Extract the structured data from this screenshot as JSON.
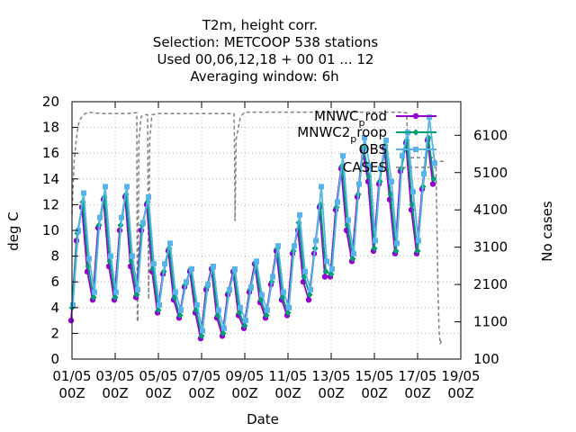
{
  "chart_data": {
    "type": "line",
    "title_lines": [
      "T2m, height corr.",
      "Selection: METCOOP    538 stations",
      "Used  00,06,12,18 + 00 01 ... 12",
      "Averaging window:  6h"
    ],
    "xlabel": "Date",
    "ylabel": "deg C",
    "y2label": "No cases",
    "x_tick_top": [
      "01/05",
      "03/05",
      "05/05",
      "07/05",
      "09/05",
      "11/05",
      "13/05",
      "15/05",
      "17/05",
      "19/05"
    ],
    "x_tick_bottom": [
      "00Z",
      "00Z",
      "00Z",
      "00Z",
      "00Z",
      "00Z",
      "00Z",
      "00Z",
      "00Z",
      "00Z"
    ],
    "xlim_days": [
      0,
      18
    ],
    "ylim": [
      0,
      20
    ],
    "yticks": [
      "0",
      "2",
      "4",
      "6",
      "8",
      "10",
      "12",
      "14",
      "16",
      "18",
      "20"
    ],
    "y2lim": [
      100,
      7000
    ],
    "y2ticks": [
      "100",
      "1100",
      "2100",
      "3100",
      "4100",
      "5100",
      "6100"
    ],
    "grid": true,
    "legend_position": "top-right",
    "legend": [
      {
        "main": "MNWC",
        "sub": "p",
        "tail": "rod"
      },
      {
        "main": "MNWC2",
        "sub": "p",
        "tail": "roop"
      },
      {
        "main": "OBS",
        "sub": "",
        "tail": ""
      },
      {
        "main": "CASES",
        "sub": "",
        "tail": ""
      }
    ],
    "colors": {
      "mnwc_prod": "#9400d3",
      "mnwc2_preop": "#009e73",
      "obs": "#56b4e9",
      "cases": "#808080"
    },
    "x_days": [
      0,
      0.25,
      0.5,
      0.75,
      1,
      1.25,
      1.5,
      1.75,
      2,
      2.25,
      2.5,
      2.75,
      3,
      3.25,
      3.5,
      3.75,
      4,
      4.25,
      4.5,
      4.75,
      5,
      5.25,
      5.5,
      5.75,
      6,
      6.25,
      6.5,
      6.75,
      7,
      7.25,
      7.5,
      7.75,
      8,
      8.25,
      8.5,
      8.75,
      9,
      9.25,
      9.5,
      9.75,
      10,
      10.25,
      10.5,
      10.75,
      11,
      11.25,
      11.5,
      11.75,
      12,
      12.25,
      12.5,
      12.75,
      13,
      13.25,
      13.5,
      13.75,
      14,
      14.25,
      14.5,
      14.75,
      15,
      15.25,
      15.5,
      15.75,
      16,
      16.25,
      16.5,
      16.75
    ],
    "series": [
      {
        "name": "MNWC prod",
        "values": [
          3.0,
          9.2,
          11.8,
          6.8,
          4.6,
          10.2,
          12.4,
          7.2,
          4.6,
          10.0,
          12.6,
          7.2,
          4.8,
          10.0,
          12.0,
          6.8,
          3.6,
          6.6,
          8.4,
          4.6,
          3.2,
          5.6,
          6.8,
          3.6,
          1.6,
          5.4,
          7.0,
          3.2,
          1.8,
          5.0,
          6.8,
          3.4,
          2.4,
          5.2,
          7.4,
          4.4,
          3.2,
          5.8,
          8.4,
          4.6,
          3.4,
          8.2,
          10.0,
          6.0,
          4.6,
          8.2,
          11.8,
          6.4,
          6.4,
          11.6,
          14.8,
          10.0,
          7.6,
          12.6,
          16.2,
          13.8,
          8.4,
          13.6,
          16.4,
          12.4,
          8.2,
          14.6,
          16.8,
          11.6,
          8.2,
          13.2,
          17.0,
          13.6
        ],
        "dx": -0.04
      },
      {
        "name": "MNWC2 preop",
        "values": [
          4.0,
          9.8,
          12.2,
          7.2,
          4.8,
          10.4,
          12.6,
          7.6,
          4.8,
          10.4,
          12.8,
          7.6,
          5.0,
          10.4,
          12.2,
          7.0,
          3.8,
          6.8,
          8.6,
          4.8,
          3.4,
          5.8,
          7.0,
          3.8,
          1.8,
          5.6,
          7.0,
          3.4,
          2.0,
          5.2,
          6.8,
          3.6,
          2.6,
          5.4,
          7.4,
          4.6,
          3.4,
          6.0,
          8.6,
          4.8,
          3.6,
          8.4,
          10.6,
          6.4,
          5.0,
          8.6,
          12.0,
          6.8,
          6.6,
          11.8,
          15.0,
          10.4,
          7.8,
          12.8,
          16.4,
          14.2,
          8.6,
          13.8,
          16.6,
          12.8,
          8.4,
          14.8,
          17.0,
          12.0,
          8.4,
          13.4,
          17.2,
          14.0
        ],
        "dx": 0.0
      },
      {
        "name": "OBS",
        "values": [
          4.2,
          10.0,
          12.9,
          7.8,
          5.2,
          11.0,
          13.4,
          8.0,
          5.2,
          11.0,
          13.4,
          8.0,
          5.4,
          10.6,
          12.6,
          7.4,
          4.2,
          7.4,
          9.0,
          5.2,
          3.8,
          6.0,
          7.0,
          4.2,
          2.2,
          5.8,
          7.2,
          3.8,
          2.4,
          5.4,
          7.0,
          4.0,
          3.0,
          5.6,
          7.6,
          5.0,
          3.8,
          6.4,
          8.8,
          5.2,
          4.0,
          8.8,
          11.2,
          6.8,
          5.4,
          9.2,
          13.4,
          7.6,
          7.0,
          12.2,
          15.8,
          10.8,
          8.2,
          13.6,
          17.2,
          15.0,
          9.2,
          14.8,
          17.0,
          13.8,
          9.0,
          15.8,
          17.6,
          13.0,
          9.2,
          14.4,
          18.8,
          15.2
        ],
        "dx": 0.04
      }
    ],
    "cases": {
      "x_days": [
        0.0,
        0.1,
        0.2,
        0.3,
        0.4,
        0.6,
        0.8,
        1.0,
        1.5,
        2.0,
        2.5,
        2.9,
        3.0,
        3.02,
        3.05,
        3.1,
        3.2,
        3.4,
        3.5,
        3.55,
        3.6,
        3.7,
        4.0,
        5.0,
        5.5,
        6.0,
        6.5,
        7.0,
        7.4,
        7.5,
        7.52,
        7.55,
        7.6,
        7.8,
        8.0,
        9.0,
        10.0,
        11.0,
        12.0,
        13.0,
        14.0,
        15.0,
        15.25,
        15.4,
        15.5,
        15.55,
        15.6,
        16.0,
        16.5,
        16.75,
        16.85,
        16.95,
        17.0,
        17.2
      ],
      "values": [
        4000,
        5400,
        6000,
        6400,
        6550,
        6680,
        6720,
        6700,
        6680,
        6680,
        6680,
        6700,
        6700,
        1150,
        1100,
        6000,
        6600,
        6650,
        6650,
        1700,
        6000,
        6650,
        6680,
        6680,
        6680,
        6680,
        6680,
        6680,
        6680,
        6680,
        6000,
        3800,
        6000,
        6600,
        6720,
        6720,
        6720,
        6720,
        6720,
        6720,
        6720,
        6720,
        6720,
        6700,
        6700,
        5500,
        5500,
        5500,
        5500,
        5500,
        5400,
        5400,
        5400,
        5400
      ],
      "tail_x_days": [
        16.85,
        16.9,
        16.95,
        17.0,
        17.05,
        17.1
      ],
      "tail_values": [
        5400,
        3500,
        1800,
        800,
        500,
        600
      ]
    }
  }
}
